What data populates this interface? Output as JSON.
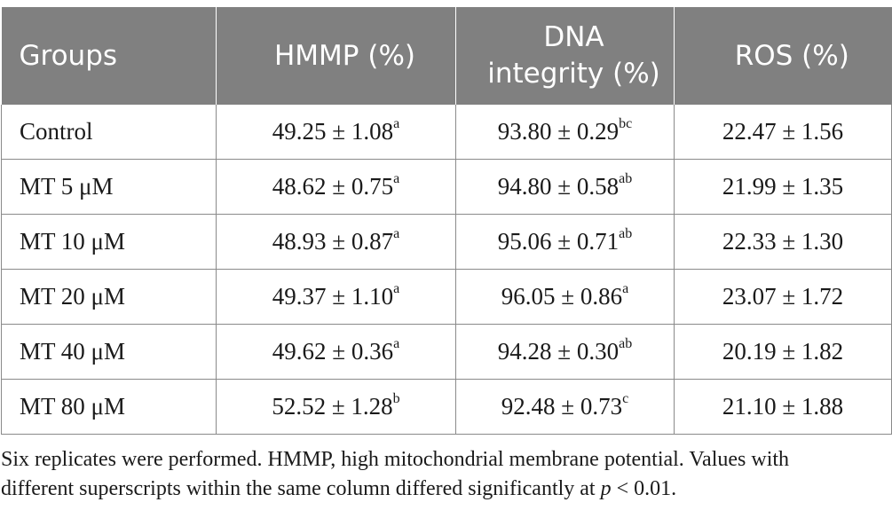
{
  "table": {
    "headers": [
      "Groups",
      "HMMP (%)",
      "DNA integrity (%)",
      "ROS (%)"
    ],
    "header_lines": {
      "dna": [
        "DNA",
        "integrity (%)"
      ]
    },
    "rows": [
      {
        "group": "Control",
        "hmmp": "49.25 ± 1.08",
        "hmmp_sup": "a",
        "dna": "93.80 ± 0.29",
        "dna_sup": "bc",
        "ros": "22.47 ± 1.56"
      },
      {
        "group": "MT 5 μM",
        "hmmp": "48.62 ± 0.75",
        "hmmp_sup": "a",
        "dna": "94.80 ± 0.58",
        "dna_sup": "ab",
        "ros": "21.99 ± 1.35"
      },
      {
        "group": "MT 10 μM",
        "hmmp": "48.93 ± 0.87",
        "hmmp_sup": "a",
        "dna": "95.06 ± 0.71",
        "dna_sup": "ab",
        "ros": "22.33 ± 1.30"
      },
      {
        "group": "MT 20 μM",
        "hmmp": "49.37 ± 1.10",
        "hmmp_sup": "a",
        "dna": "96.05 ± 0.86",
        "dna_sup": "a",
        "ros": "23.07 ± 1.72"
      },
      {
        "group": "MT 40 μM",
        "hmmp": "49.62 ± 0.36",
        "hmmp_sup": "a",
        "dna": "94.28 ± 0.30",
        "dna_sup": "ab",
        "ros": "20.19 ± 1.82"
      },
      {
        "group": "MT 80 μM",
        "hmmp": "52.52 ± 1.28",
        "hmmp_sup": "b",
        "dna": "92.48 ± 0.73",
        "dna_sup": "c",
        "ros": "21.10 ± 1.88"
      }
    ]
  },
  "footnote": {
    "line1": "Six replicates were performed. HMMP, high mitochondrial membrane potential. Values with",
    "line2_prefix": "different superscripts within the same column differed significantly at ",
    "line2_var": "p",
    "line2_suffix": " < 0.01."
  },
  "colors": {
    "header_bg": "#808080",
    "header_text": "#ffffff",
    "grid_line": "#8a8a8a",
    "body_text": "#1a1a1a"
  }
}
